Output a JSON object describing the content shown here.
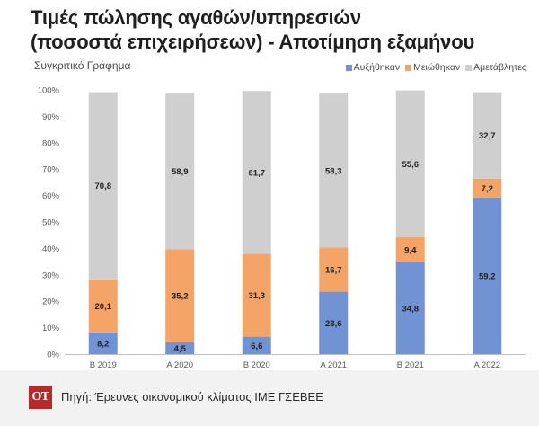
{
  "title_line1": "Τιμές πώλησης αγαθών/υπηρεσιών",
  "title_line2": "(ποσοστά επιχειρήσεων) - Αποτίμηση εξαμήνου",
  "subtitle": "Συγκριτικό Γράφημα",
  "source": "Πηγή: Έρευνες οικονομικού κλίματος ΙΜΕ ΓΣΕΒΕΕ",
  "logo": "ΟΤ",
  "colors": {
    "increased": "#7193d3",
    "decreased": "#f5a468",
    "unchanged": "#cfcfcf"
  },
  "chart_data": {
    "type": "bar",
    "stacked": true,
    "title": "Τιμές πώλησης αγαθών/υπηρεσιών (ποσοστά επιχειρήσεων) - Αποτίμηση εξαμήνου",
    "categories": [
      "Β 2019",
      "Α 2020",
      "Β 2020",
      "Α 2021",
      "Β 2021",
      "Α 2022"
    ],
    "series": [
      {
        "name": "Αυξήθηκαν",
        "color_key": "increased",
        "values": [
          8.2,
          4.5,
          6.6,
          23.6,
          34.8,
          59.2
        ]
      },
      {
        "name": "Μειώθηκαν",
        "color_key": "decreased",
        "values": [
          20.1,
          35.2,
          31.3,
          16.7,
          9.4,
          7.2
        ]
      },
      {
        "name": "Αμετάβλητες",
        "color_key": "unchanged",
        "values": [
          70.8,
          58.9,
          61.7,
          58.3,
          55.6,
          32.7
        ]
      }
    ],
    "data_labels": [
      [
        "8,2",
        "4,5",
        "6,6",
        "23,6",
        "34,8",
        "59,2"
      ],
      [
        "20,1",
        "35,2",
        "31,3",
        "16,7",
        "9,4",
        "7,2"
      ],
      [
        "70,8",
        "58,9",
        "61,7",
        "58,3",
        "55,6",
        "32,7"
      ]
    ],
    "ylim": [
      0,
      100
    ],
    "yticks": [
      0,
      10,
      20,
      30,
      40,
      50,
      60,
      70,
      80,
      90,
      100
    ],
    "ytick_labels": [
      "0%",
      "10%",
      "20%",
      "30%",
      "40%",
      "50%",
      "60%",
      "70%",
      "80%",
      "90%",
      "100%"
    ],
    "xlabel": "",
    "ylabel": "",
    "grid": false,
    "legend_position": "top-right"
  }
}
